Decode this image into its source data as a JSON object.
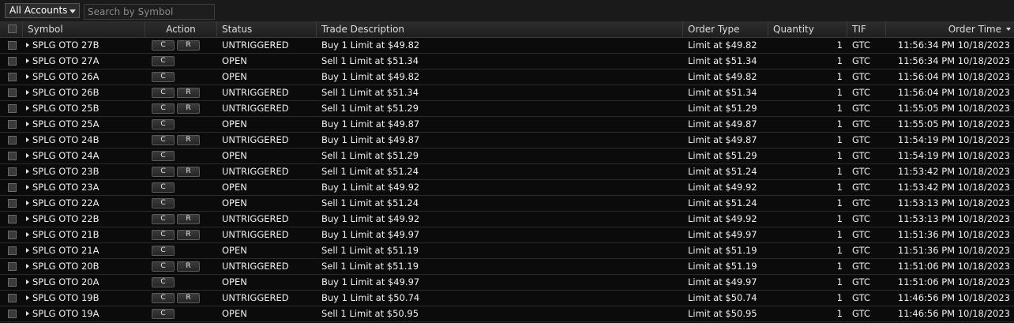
{
  "toolbar": {
    "account_select": "All Accounts",
    "search_placeholder": "Search by Symbol"
  },
  "columns": {
    "symbol": "Symbol",
    "action": "Action",
    "status": "Status",
    "trade_description": "Trade Description",
    "order_type": "Order Type",
    "quantity": "Quantity",
    "tif": "TIF",
    "order_time": "Order Time"
  },
  "rows": [
    {
      "symbol": "SPLG OTO 27B",
      "actions": [
        "C",
        "R"
      ],
      "status": "UNTRIGGERED",
      "desc": "Buy 1 Limit at $49.82",
      "type": "Limit at $49.82",
      "qty": "1",
      "tif": "GTC",
      "time": "11:56:34 PM 10/18/2023"
    },
    {
      "symbol": "SPLG OTO 27A",
      "actions": [
        "C"
      ],
      "status": "OPEN",
      "desc": "Sell 1 Limit at $51.34",
      "type": "Limit at $51.34",
      "qty": "1",
      "tif": "GTC",
      "time": "11:56:34 PM 10/18/2023"
    },
    {
      "symbol": "SPLG OTO 26A",
      "actions": [
        "C"
      ],
      "status": "OPEN",
      "desc": "Buy 1 Limit at $49.82",
      "type": "Limit at $49.82",
      "qty": "1",
      "tif": "GTC",
      "time": "11:56:04 PM 10/18/2023"
    },
    {
      "symbol": "SPLG OTO 26B",
      "actions": [
        "C",
        "R"
      ],
      "status": "UNTRIGGERED",
      "desc": "Sell 1 Limit at $51.34",
      "type": "Limit at $51.34",
      "qty": "1",
      "tif": "GTC",
      "time": "11:56:04 PM 10/18/2023"
    },
    {
      "symbol": "SPLG OTO 25B",
      "actions": [
        "C",
        "R"
      ],
      "status": "UNTRIGGERED",
      "desc": "Sell 1 Limit at $51.29",
      "type": "Limit at $51.29",
      "qty": "1",
      "tif": "GTC",
      "time": "11:55:05 PM 10/18/2023"
    },
    {
      "symbol": "SPLG OTO 25A",
      "actions": [
        "C"
      ],
      "status": "OPEN",
      "desc": "Buy 1 Limit at $49.87",
      "type": "Limit at $49.87",
      "qty": "1",
      "tif": "GTC",
      "time": "11:55:05 PM 10/18/2023"
    },
    {
      "symbol": "SPLG OTO 24B",
      "actions": [
        "C",
        "R"
      ],
      "status": "UNTRIGGERED",
      "desc": "Buy 1 Limit at $49.87",
      "type": "Limit at $49.87",
      "qty": "1",
      "tif": "GTC",
      "time": "11:54:19 PM 10/18/2023"
    },
    {
      "symbol": "SPLG OTO 24A",
      "actions": [
        "C"
      ],
      "status": "OPEN",
      "desc": "Sell 1 Limit at $51.29",
      "type": "Limit at $51.29",
      "qty": "1",
      "tif": "GTC",
      "time": "11:54:19 PM 10/18/2023"
    },
    {
      "symbol": "SPLG OTO 23B",
      "actions": [
        "C",
        "R"
      ],
      "status": "UNTRIGGERED",
      "desc": "Sell 1 Limit at $51.24",
      "type": "Limit at $51.24",
      "qty": "1",
      "tif": "GTC",
      "time": "11:53:42 PM 10/18/2023"
    },
    {
      "symbol": "SPLG OTO 23A",
      "actions": [
        "C"
      ],
      "status": "OPEN",
      "desc": "Buy 1 Limit at $49.92",
      "type": "Limit at $49.92",
      "qty": "1",
      "tif": "GTC",
      "time": "11:53:42 PM 10/18/2023"
    },
    {
      "symbol": "SPLG OTO 22A",
      "actions": [
        "C"
      ],
      "status": "OPEN",
      "desc": "Sell 1 Limit at $51.24",
      "type": "Limit at $51.24",
      "qty": "1",
      "tif": "GTC",
      "time": "11:53:13 PM 10/18/2023"
    },
    {
      "symbol": "SPLG OTO 22B",
      "actions": [
        "C",
        "R"
      ],
      "status": "UNTRIGGERED",
      "desc": "Buy 1 Limit at $49.92",
      "type": "Limit at $49.92",
      "qty": "1",
      "tif": "GTC",
      "time": "11:53:13 PM 10/18/2023"
    },
    {
      "symbol": "SPLG OTO 21B",
      "actions": [
        "C",
        "R"
      ],
      "status": "UNTRIGGERED",
      "desc": "Buy 1 Limit at $49.97",
      "type": "Limit at $49.97",
      "qty": "1",
      "tif": "GTC",
      "time": "11:51:36 PM 10/18/2023"
    },
    {
      "symbol": "SPLG OTO 21A",
      "actions": [
        "C"
      ],
      "status": "OPEN",
      "desc": "Sell 1 Limit at $51.19",
      "type": "Limit at $51.19",
      "qty": "1",
      "tif": "GTC",
      "time": "11:51:36 PM 10/18/2023"
    },
    {
      "symbol": "SPLG OTO 20B",
      "actions": [
        "C",
        "R"
      ],
      "status": "UNTRIGGERED",
      "desc": "Sell 1 Limit at $51.19",
      "type": "Limit at $51.19",
      "qty": "1",
      "tif": "GTC",
      "time": "11:51:06 PM 10/18/2023"
    },
    {
      "symbol": "SPLG OTO 20A",
      "actions": [
        "C"
      ],
      "status": "OPEN",
      "desc": "Buy 1 Limit at $49.97",
      "type": "Limit at $49.97",
      "qty": "1",
      "tif": "GTC",
      "time": "11:51:06 PM 10/18/2023"
    },
    {
      "symbol": "SPLG OTO 19B",
      "actions": [
        "C",
        "R"
      ],
      "status": "UNTRIGGERED",
      "desc": "Buy 1 Limit at $50.74",
      "type": "Limit at $50.74",
      "qty": "1",
      "tif": "GTC",
      "time": "11:46:56 PM 10/18/2023"
    },
    {
      "symbol": "SPLG OTO 19A",
      "actions": [
        "C"
      ],
      "status": "OPEN",
      "desc": "Sell 1 Limit at $50.95",
      "type": "Limit at $50.95",
      "qty": "1",
      "tif": "GTC",
      "time": "11:46:56 PM 10/18/2023"
    }
  ]
}
